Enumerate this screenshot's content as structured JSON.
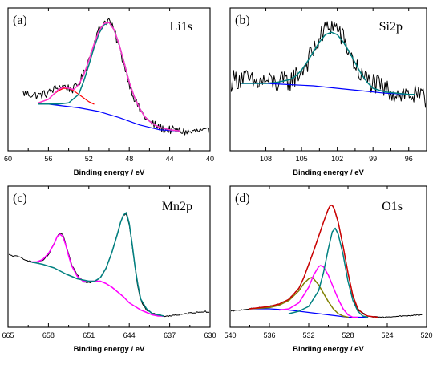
{
  "chart_data": [
    {
      "type": "line",
      "panel_letter": "(a)",
      "title": "Li1s",
      "xlabel": "Binding energy / eV",
      "ylabel": "",
      "xlim": [
        60,
        40
      ],
      "ylim": [
        0,
        1
      ],
      "x_ticks": [
        60,
        56,
        52,
        48,
        44,
        40
      ],
      "y_ticks": [],
      "grid": false,
      "series": [
        {
          "role": "raw",
          "color": "#000000",
          "width": 1,
          "noise": 0.035,
          "x": [
            58.5,
            57,
            56,
            55.5,
            55,
            54.5,
            54,
            53.5,
            53,
            52.5,
            52,
            51.5,
            51,
            50.5,
            50,
            49.8,
            49.5,
            49,
            48.5,
            48,
            47.5,
            47,
            46.5,
            46,
            45.5,
            45,
            44.5,
            44,
            43,
            42,
            41,
            40
          ],
          "y": [
            0.42,
            0.4,
            0.42,
            0.45,
            0.47,
            0.48,
            0.46,
            0.45,
            0.5,
            0.58,
            0.7,
            0.83,
            0.94,
            1.0,
            1.02,
            0.98,
            0.93,
            0.8,
            0.65,
            0.5,
            0.38,
            0.29,
            0.23,
            0.18,
            0.16,
            0.14,
            0.12,
            0.12,
            0.11,
            0.1,
            0.11,
            0.1
          ]
        },
        {
          "role": "envelope",
          "color": "#ff33cc",
          "width": 1.5,
          "x": [
            57,
            56,
            55.5,
            55,
            54.5,
            54,
            53.5,
            53,
            52.5,
            52,
            51.5,
            51,
            50.5,
            50,
            49.5,
            49,
            48.5,
            48,
            47.5,
            47,
            46.5,
            46,
            45.5,
            45,
            44,
            43
          ],
          "y": [
            0.34,
            0.37,
            0.41,
            0.45,
            0.47,
            0.46,
            0.45,
            0.49,
            0.57,
            0.69,
            0.82,
            0.93,
            0.99,
            1.0,
            0.94,
            0.82,
            0.67,
            0.51,
            0.39,
            0.3,
            0.23,
            0.19,
            0.16,
            0.14,
            0.12,
            0.11
          ]
        },
        {
          "role": "component",
          "color": "#ff0000",
          "width": 1.2,
          "x": [
            57,
            56,
            55.5,
            55,
            54.5,
            54,
            53.5,
            53,
            52.5,
            52,
            51.5
          ],
          "y": [
            0.34,
            0.37,
            0.41,
            0.44,
            0.46,
            0.46,
            0.44,
            0.41,
            0.38,
            0.35,
            0.33
          ]
        },
        {
          "role": "component",
          "color": "#008080",
          "width": 1.5,
          "x": [
            57,
            55,
            54,
            53,
            52.5,
            52,
            51.5,
            51,
            50.5,
            50,
            49.5,
            49,
            48.5,
            48,
            47.5,
            47,
            46.5,
            46,
            45.5,
            45,
            44,
            43
          ],
          "y": [
            0.33,
            0.33,
            0.34,
            0.41,
            0.52,
            0.65,
            0.79,
            0.91,
            0.98,
            1.0,
            0.94,
            0.82,
            0.67,
            0.51,
            0.39,
            0.3,
            0.23,
            0.19,
            0.16,
            0.14,
            0.12,
            0.11
          ]
        },
        {
          "role": "background",
          "color": "#0000ff",
          "width": 1.2,
          "x": [
            57,
            55,
            53,
            51,
            49,
            47,
            45,
            43
          ],
          "y": [
            0.34,
            0.32,
            0.3,
            0.27,
            0.22,
            0.16,
            0.12,
            0.11
          ]
        }
      ]
    },
    {
      "type": "line",
      "panel_letter": "(b)",
      "title": "Si2p",
      "xlabel": "Binding energy / eV",
      "ylabel": "",
      "xlim": [
        111,
        94.5
      ],
      "ylim": [
        0,
        1
      ],
      "x_ticks": [
        108,
        105,
        102,
        99,
        96
      ],
      "y_ticks": [],
      "grid": false,
      "series": [
        {
          "role": "raw",
          "color": "#000000",
          "width": 1,
          "noise": 0.09,
          "x": [
            111,
            110,
            109,
            108,
            107,
            106,
            105,
            104.5,
            104,
            103.5,
            103,
            102.5,
            102,
            101.5,
            101,
            100.5,
            100,
            99,
            98,
            97,
            96,
            95,
            94.5
          ],
          "y": [
            0.52,
            0.55,
            0.5,
            0.52,
            0.5,
            0.52,
            0.6,
            0.68,
            0.77,
            0.86,
            0.94,
            0.98,
            0.95,
            0.86,
            0.76,
            0.65,
            0.56,
            0.5,
            0.45,
            0.42,
            0.41,
            0.38,
            0.36
          ]
        },
        {
          "role": "envelope",
          "color": "#008080",
          "width": 1.5,
          "x": [
            110,
            109,
            108,
            107,
            106,
            105.5,
            105,
            104.5,
            104,
            103.5,
            103,
            102.5,
            102,
            101.5,
            101,
            100.5,
            100,
            99.5,
            99,
            98,
            97,
            96,
            95.5
          ],
          "y": [
            0.5,
            0.5,
            0.5,
            0.51,
            0.53,
            0.56,
            0.61,
            0.68,
            0.76,
            0.84,
            0.9,
            0.92,
            0.9,
            0.84,
            0.76,
            0.67,
            0.58,
            0.51,
            0.46,
            0.43,
            0.42,
            0.41,
            0.41
          ]
        },
        {
          "role": "background",
          "color": "#0000ff",
          "width": 1.2,
          "x": [
            110,
            108,
            106,
            104,
            102,
            100,
            98,
            96,
            95.5
          ],
          "y": [
            0.5,
            0.5,
            0.49,
            0.48,
            0.46,
            0.44,
            0.42,
            0.41,
            0.41
          ]
        }
      ]
    },
    {
      "type": "line",
      "panel_letter": "(c)",
      "title": "Mn2p",
      "xlabel": "Binding energy / eV",
      "ylabel": "",
      "xlim": [
        665,
        630
      ],
      "ylim": [
        0,
        1
      ],
      "x_ticks": [
        665,
        658,
        651,
        644,
        637,
        630
      ],
      "y_ticks": [],
      "grid": false,
      "series": [
        {
          "role": "raw",
          "color": "#000000",
          "width": 1,
          "noise": 0.006,
          "x": [
            665,
            663,
            661,
            660,
            659,
            658,
            657,
            656.5,
            656,
            655.5,
            655,
            654.5,
            654,
            653,
            652,
            651,
            650,
            649,
            648,
            647,
            646,
            645.5,
            645,
            644.5,
            644,
            643.5,
            643,
            642.5,
            642,
            641,
            640,
            639,
            638,
            637,
            636,
            635,
            634,
            633,
            632,
            631,
            630
          ],
          "y": [
            0.55,
            0.53,
            0.49,
            0.48,
            0.5,
            0.55,
            0.64,
            0.7,
            0.73,
            0.71,
            0.64,
            0.55,
            0.47,
            0.38,
            0.33,
            0.32,
            0.33,
            0.36,
            0.44,
            0.57,
            0.73,
            0.82,
            0.88,
            0.89,
            0.8,
            0.63,
            0.44,
            0.28,
            0.17,
            0.09,
            0.06,
            0.05,
            0.04,
            0.04,
            0.05,
            0.05,
            0.06,
            0.07,
            0.07,
            0.08,
            0.07
          ]
        },
        {
          "role": "component",
          "color": "#ff00ff",
          "width": 1.5,
          "x": [
            661,
            660,
            659,
            658,
            657,
            656.5,
            656,
            655.5,
            655,
            654.5,
            654,
            653,
            652,
            651,
            650,
            649,
            648,
            647,
            646,
            645,
            644,
            643,
            642,
            641,
            640,
            639,
            638
          ],
          "y": [
            0.49,
            0.49,
            0.51,
            0.56,
            0.64,
            0.7,
            0.72,
            0.7,
            0.63,
            0.54,
            0.46,
            0.37,
            0.33,
            0.33,
            0.33,
            0.33,
            0.31,
            0.28,
            0.24,
            0.2,
            0.15,
            0.12,
            0.09,
            0.07,
            0.05,
            0.04,
            0.04
          ]
        },
        {
          "role": "component",
          "color": "#008080",
          "width": 1.5,
          "x": [
            661,
            659,
            657,
            655,
            653,
            651,
            650,
            649,
            648,
            647,
            646,
            645.5,
            645,
            644.5,
            644,
            643.5,
            643,
            642.5,
            642,
            641,
            640,
            639,
            638
          ],
          "y": [
            0.49,
            0.47,
            0.44,
            0.39,
            0.35,
            0.33,
            0.33,
            0.36,
            0.44,
            0.57,
            0.73,
            0.82,
            0.88,
            0.9,
            0.81,
            0.64,
            0.45,
            0.3,
            0.18,
            0.1,
            0.06,
            0.05,
            0.04
          ]
        }
      ]
    },
    {
      "type": "line",
      "panel_letter": "(d)",
      "title": "O1s",
      "xlabel": "Binding energy / eV",
      "ylabel": "",
      "xlim": [
        540,
        520
      ],
      "ylim": [
        0,
        1
      ],
      "x_ticks": [
        540,
        536,
        532,
        528,
        524,
        520
      ],
      "y_ticks": [],
      "grid": false,
      "series": [
        {
          "role": "raw",
          "color": "#000000",
          "width": 1,
          "noise": 0.004,
          "x": [
            540,
            539,
            538,
            537,
            536,
            535,
            534,
            533,
            532.5,
            532,
            531.5,
            531,
            530.5,
            530,
            529.8,
            529.6,
            529.4,
            529,
            528.5,
            528,
            527.5,
            527,
            526,
            525,
            524,
            523,
            522,
            521,
            520.5
          ],
          "y": [
            0.08,
            0.09,
            0.1,
            0.11,
            0.12,
            0.14,
            0.18,
            0.27,
            0.36,
            0.47,
            0.58,
            0.7,
            0.82,
            0.93,
            0.96,
            0.96,
            0.93,
            0.82,
            0.62,
            0.4,
            0.2,
            0.09,
            0.04,
            0.03,
            0.03,
            0.04,
            0.04,
            0.05,
            0.05
          ]
        },
        {
          "role": "envelope",
          "color": "#cc0000",
          "width": 1.5,
          "x": [
            538,
            537,
            536,
            535,
            534,
            533,
            532.5,
            532,
            531.5,
            531,
            530.5,
            530,
            529.8,
            529.6,
            529.4,
            529,
            528.5,
            528,
            527.5,
            527,
            526.5,
            526,
            525
          ],
          "y": [
            0.1,
            0.11,
            0.12,
            0.14,
            0.18,
            0.27,
            0.36,
            0.47,
            0.58,
            0.7,
            0.82,
            0.93,
            0.96,
            0.96,
            0.93,
            0.82,
            0.62,
            0.4,
            0.21,
            0.1,
            0.06,
            0.04,
            0.03
          ]
        },
        {
          "role": "component",
          "color": "#808000",
          "width": 1.5,
          "x": [
            538,
            536,
            535,
            534,
            533,
            532.5,
            532,
            531.7,
            531.5,
            531,
            530.5,
            530,
            529.5,
            529,
            528.5,
            528
          ],
          "y": [
            0.1,
            0.11,
            0.13,
            0.17,
            0.25,
            0.31,
            0.35,
            0.36,
            0.35,
            0.3,
            0.23,
            0.16,
            0.1,
            0.06,
            0.04,
            0.03
          ]
        },
        {
          "role": "component",
          "color": "#ff00ff",
          "width": 1.5,
          "x": [
            535,
            534,
            533,
            532,
            531.5,
            531,
            530.8,
            530.5,
            530,
            529.5,
            529,
            528.5,
            528,
            527.5,
            527
          ],
          "y": [
            0.09,
            0.1,
            0.15,
            0.28,
            0.38,
            0.45,
            0.46,
            0.45,
            0.38,
            0.28,
            0.18,
            0.1,
            0.05,
            0.03,
            0.03
          ]
        },
        {
          "role": "component",
          "color": "#008080",
          "width": 1.5,
          "x": [
            534,
            533,
            532,
            531,
            530.5,
            530,
            529.6,
            529.3,
            529,
            528.5,
            528,
            527.5,
            527,
            526.5,
            526
          ],
          "y": [
            0.06,
            0.08,
            0.12,
            0.25,
            0.4,
            0.6,
            0.74,
            0.77,
            0.72,
            0.55,
            0.33,
            0.17,
            0.08,
            0.04,
            0.03
          ]
        },
        {
          "role": "background",
          "color": "#0000ff",
          "width": 1.2,
          "x": [
            538,
            536,
            534,
            532,
            530,
            528,
            526
          ],
          "y": [
            0.1,
            0.1,
            0.09,
            0.07,
            0.05,
            0.03,
            0.03
          ]
        }
      ]
    }
  ]
}
